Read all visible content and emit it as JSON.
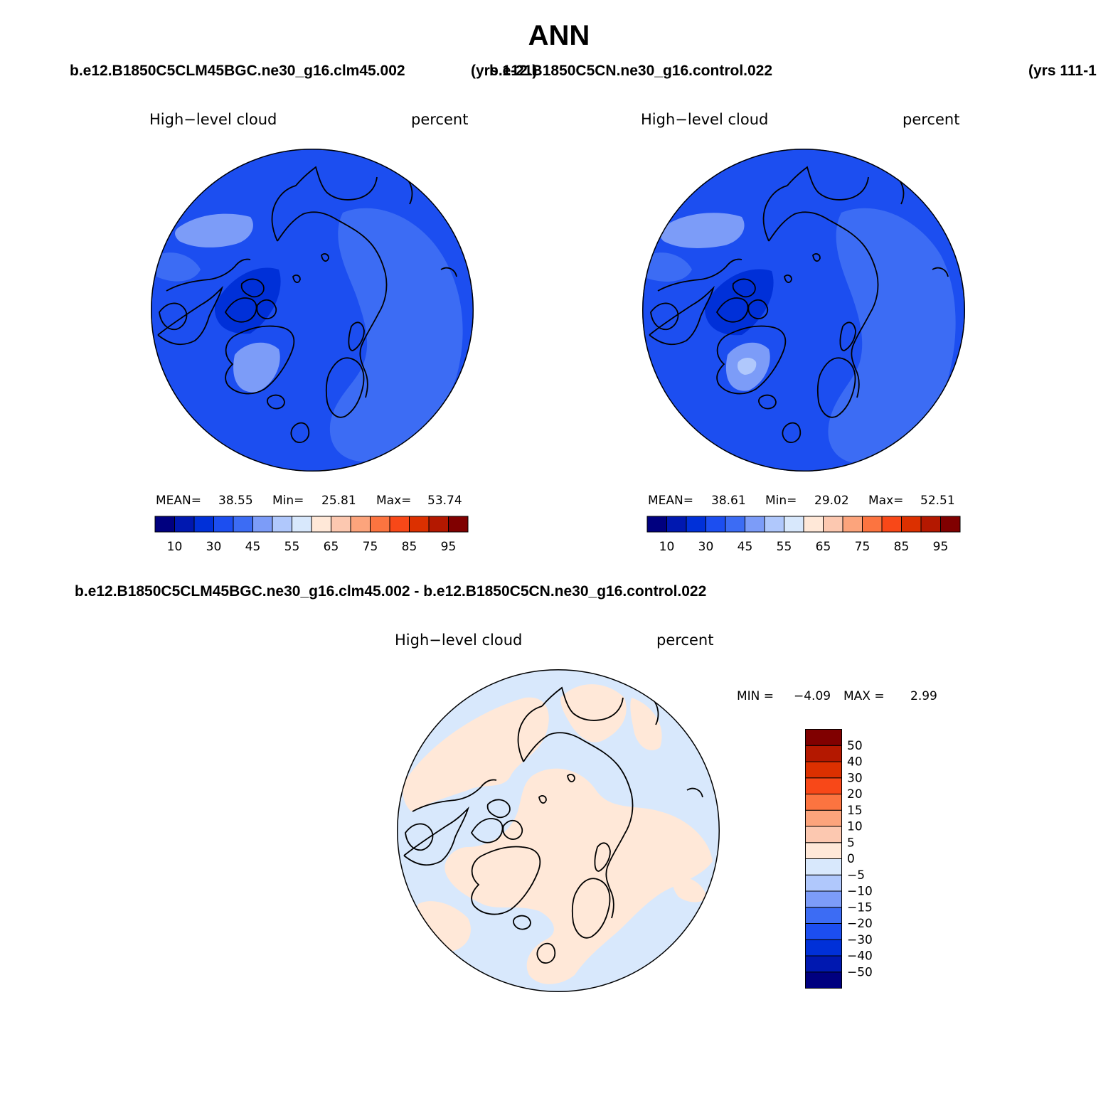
{
  "page_title": "ANN",
  "panel_a": {
    "case_title": "b.e12.B1850C5CLM45BGC.ne30_g16.clm45.002",
    "years": "(yrs 1-21)",
    "variable": "High−level cloud",
    "units": "percent",
    "stats": {
      "mean_label": "MEAN=",
      "mean": "38.55",
      "min_label": "Min=",
      "min": "25.81",
      "max_label": "Max=",
      "max": "53.74"
    }
  },
  "panel_b": {
    "case_title": "b.e12.B1850C5CN.ne30_g16.control.022",
    "years": "(yrs 111-1",
    "variable": "High−level cloud",
    "units": "percent",
    "stats": {
      "mean_label": "MEAN=",
      "mean": "38.61",
      "min_label": "Min=",
      "min": "29.02",
      "max_label": "Max=",
      "max": "52.51"
    }
  },
  "panel_c": {
    "case_title": "b.e12.B1850C5CLM45BGC.ne30_g16.clm45.002 - b.e12.B1850C5CN.ne30_g16.control.022",
    "variable": "High−level cloud",
    "units": "percent",
    "stats": {
      "min_label": "MIN =",
      "min": "−4.09",
      "max_label": "MAX =",
      "max": "2.99"
    }
  },
  "abs_colorbar": {
    "colors": [
      "#00007f",
      "#0018b0",
      "#0030d8",
      "#1c4ef0",
      "#3c6cf4",
      "#7c9cf8",
      "#b0c8fc",
      "#d8e8fc",
      "#ffe8d8",
      "#fcc8b0",
      "#fca47c",
      "#fc7440",
      "#f84818",
      "#dc3000",
      "#b41800",
      "#800000"
    ],
    "labels": [
      "10",
      "30",
      "45",
      "55",
      "65",
      "75",
      "85",
      "95"
    ]
  },
  "diff_colorbar": {
    "colors": [
      "#00007f",
      "#0018b0",
      "#0030d8",
      "#1c4ef0",
      "#3c6cf4",
      "#7c9cf8",
      "#b0c8fc",
      "#d8e8fc",
      "#ffe8d8",
      "#fcc8b0",
      "#fca47c",
      "#fc7440",
      "#f84818",
      "#dc3000",
      "#b41800",
      "#800000"
    ],
    "labels": [
      "−50",
      "−40",
      "−30",
      "−20",
      "−15",
      "−10",
      "−5",
      "0",
      "5",
      "10",
      "15",
      "20",
      "30",
      "40",
      "50"
    ]
  },
  "map_colors": {
    "abs_base": "#1c4ef0",
    "abs_light": "#3c6cf4",
    "abs_lighter": "#7c9cf8",
    "abs_lightest": "#b0c8fc",
    "abs_dark": "#0030d8",
    "diff_neg": "#d8e8fc",
    "diff_pos": "#ffe8d8",
    "coast": "#000000"
  }
}
